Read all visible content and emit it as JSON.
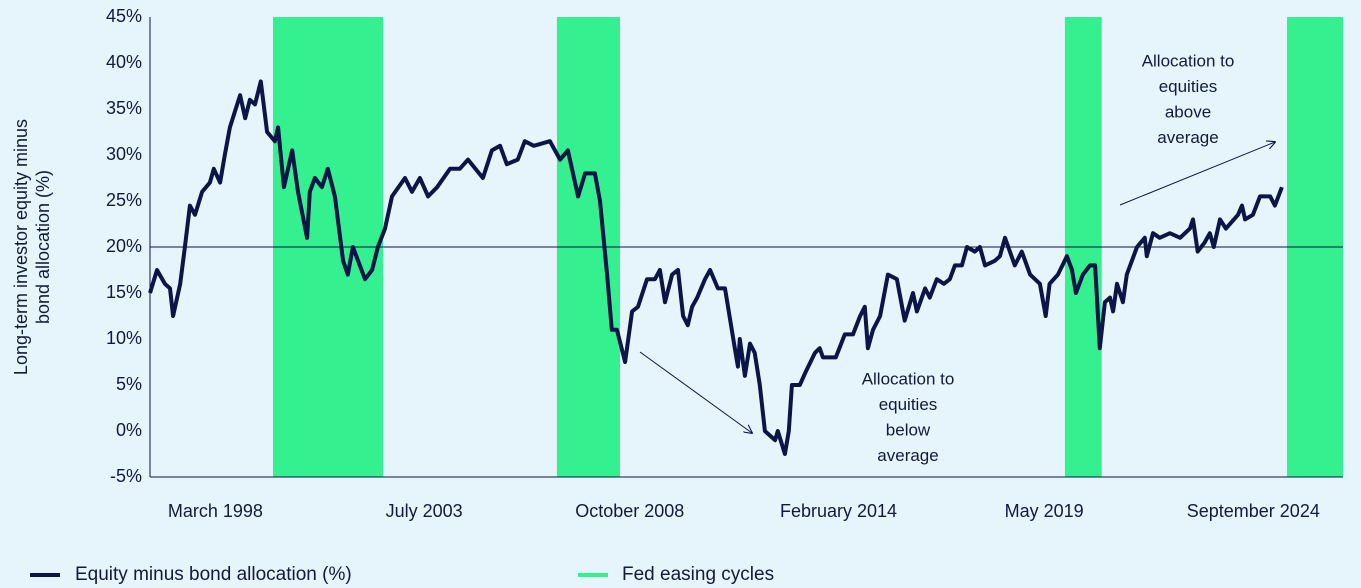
{
  "chart_data": {
    "type": "line",
    "y_label": [
      "Long-term investor equity minus",
      "bond allocation (%)"
    ],
    "xlim": [
      1996.5,
      2026.96
    ],
    "xticks": [
      {
        "value": 1998.17,
        "label": "March 1998"
      },
      {
        "value": 2003.5,
        "label": "July 2003"
      },
      {
        "value": 2008.75,
        "label": "October 2008"
      },
      {
        "value": 2014.08,
        "label": "February 2014"
      },
      {
        "value": 2019.33,
        "label": "May 2019"
      },
      {
        "value": 2024.67,
        "label": "September 2024"
      }
    ],
    "ylim": [
      -5,
      45
    ],
    "yticks": [
      {
        "value": -5,
        "label": "-5%"
      },
      {
        "value": 0,
        "label": "0%"
      },
      {
        "value": 5,
        "label": "5%"
      },
      {
        "value": 10,
        "label": "10%"
      },
      {
        "value": 15,
        "label": "15%"
      },
      {
        "value": 20,
        "label": "20%"
      },
      {
        "value": 25,
        "label": "25%"
      },
      {
        "value": 30,
        "label": "30%"
      },
      {
        "value": 35,
        "label": "35%"
      },
      {
        "value": 40,
        "label": "40%"
      },
      {
        "value": 45,
        "label": "45%"
      }
    ],
    "grid": false,
    "reference_line": 20,
    "easing": {
      "name": "Fed easing cycles",
      "color": "#35f08f",
      "periods": [
        [
          1999.64,
          2002.45
        ],
        [
          2006.89,
          2008.5
        ],
        [
          2019.86,
          2020.8
        ],
        [
          2025.53,
          2026.96
        ]
      ]
    },
    "x": [
      1996.5,
      1996.68,
      1996.88,
      1997.01,
      1997.09,
      1997.27,
      1997.39,
      1997.52,
      1997.65,
      1997.83,
      1998.03,
      1998.13,
      1998.29,
      1998.41,
      1998.54,
      1998.8,
      1998.93,
      1999.05,
      1999.18,
      1999.33,
      1999.49,
      1999.69,
      1999.77,
      1999.92,
      2000.13,
      2000.28,
      2000.51,
      2000.58,
      2000.71,
      2000.89,
      2001.04,
      2001.22,
      2001.43,
      2001.55,
      2001.68,
      2001.99,
      2002.17,
      2002.32,
      2002.5,
      2002.68,
      2003.01,
      2003.19,
      2003.39,
      2003.6,
      2003.83,
      2004.16,
      2004.41,
      2004.62,
      2005.0,
      2005.23,
      2005.44,
      2005.61,
      2005.89,
      2006.07,
      2006.3,
      2006.71,
      2006.97,
      2007.17,
      2007.43,
      2007.61,
      2007.86,
      2007.99,
      2008.17,
      2008.29,
      2008.42,
      2008.63,
      2008.81,
      2008.96,
      2009.19,
      2009.39,
      2009.52,
      2009.65,
      2009.83,
      2009.98,
      2010.11,
      2010.23,
      2010.34,
      2010.47,
      2010.67,
      2010.8,
      2011.0,
      2011.18,
      2011.43,
      2011.51,
      2011.56,
      2011.69,
      2011.82,
      2011.94,
      2012.07,
      2012.2,
      2012.33,
      2012.46,
      2012.53,
      2012.71,
      2012.81,
      2012.89,
      2013.09,
      2013.25,
      2013.48,
      2013.6,
      2013.68,
      2014.01,
      2014.24,
      2014.45,
      2014.63,
      2014.75,
      2014.83,
      2014.96,
      2015.14,
      2015.34,
      2015.57,
      2015.77,
      2015.98,
      2016.08,
      2016.29,
      2016.41,
      2016.59,
      2016.77,
      2016.92,
      2017.05,
      2017.23,
      2017.36,
      2017.56,
      2017.69,
      2017.82,
      2018.07,
      2018.2,
      2018.33,
      2018.58,
      2018.76,
      2018.97,
      2019.22,
      2019.37,
      2019.47,
      2019.68,
      2019.91,
      2020.04,
      2020.14,
      2020.32,
      2020.5,
      2020.63,
      2020.75,
      2020.88,
      2021.01,
      2021.09,
      2021.19,
      2021.34,
      2021.44,
      2021.7,
      2021.9,
      2021.95,
      2022.11,
      2022.28,
      2022.54,
      2022.8,
      2023.05,
      2023.13,
      2023.25,
      2023.43,
      2023.56,
      2023.66,
      2023.82,
      2023.97,
      2024.28,
      2024.38,
      2024.46,
      2024.66,
      2024.84,
      2025.1,
      2025.22,
      2025.4
    ],
    "series": [
      {
        "name": "Equity minus bond allocation (%)",
        "color": "#0b1547",
        "values": [
          15,
          17.5,
          16,
          15.5,
          12.5,
          16,
          20,
          24.5,
          23.5,
          26,
          27,
          28.5,
          27,
          30,
          33,
          36.5,
          34,
          36,
          35.5,
          38,
          32.5,
          31.5,
          33,
          26.5,
          30.5,
          26,
          21,
          26,
          27.5,
          26.5,
          28.5,
          25.5,
          18.5,
          17,
          20,
          16.5,
          17.5,
          20,
          22,
          25.5,
          27.5,
          26,
          27.5,
          25.5,
          26.5,
          28.5,
          28.5,
          29.5,
          27.5,
          30.5,
          31,
          29,
          29.5,
          31.5,
          31,
          31.5,
          29.5,
          30.5,
          25.5,
          28,
          28,
          25,
          17,
          11,
          11,
          7.5,
          13,
          13.5,
          16.5,
          16.5,
          17.5,
          14,
          17,
          17.5,
          12.5,
          11.5,
          13.5,
          14.5,
          16.5,
          17.5,
          15.5,
          15.5,
          9,
          7,
          10,
          6,
          9.5,
          8.5,
          5,
          0,
          -0.5,
          -1,
          0,
          -2.5,
          0,
          5,
          5,
          6.5,
          8.5,
          9,
          8,
          8,
          10.5,
          10.5,
          12.5,
          13.5,
          9,
          11,
          12.5,
          17,
          16.5,
          12,
          15,
          13,
          15.5,
          14.5,
          16.5,
          16,
          16.5,
          18,
          18,
          20,
          19.5,
          20,
          18,
          18.5,
          19,
          21,
          18,
          19.5,
          17,
          16,
          12.5,
          16,
          17,
          19,
          17.5,
          15,
          17,
          18,
          18,
          9,
          14,
          14.5,
          13,
          16,
          14,
          17,
          20,
          21,
          19,
          21.5,
          21,
          21.5,
          21,
          22,
          23,
          19.5,
          20.5,
          21.5,
          20,
          23,
          22,
          23.5,
          24.5,
          23,
          23.5,
          25.5,
          25.5,
          24.5,
          26.5
        ]
      }
    ],
    "annotations": [
      {
        "lines": [
          "Allocation to",
          "equities",
          "below",
          "average"
        ]
      },
      {
        "lines": [
          "Allocation to",
          "equities",
          "above",
          "average"
        ]
      }
    ]
  }
}
